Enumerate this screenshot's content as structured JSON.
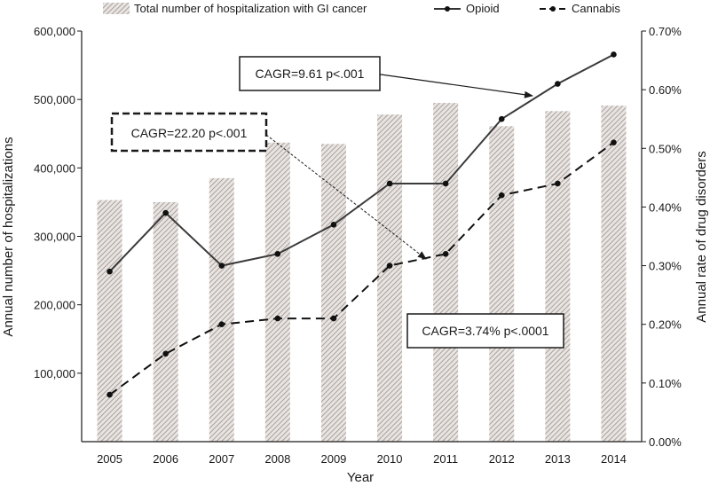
{
  "chart_data": {
    "type": "bar",
    "xlabel": "Year",
    "ylabel": "Annual number of hospitalizations",
    "y2label": "Annual rate of drug disorders",
    "categories": [
      "2005",
      "2006",
      "2007",
      "2008",
      "2009",
      "2010",
      "2011",
      "2012",
      "2013",
      "2014"
    ],
    "ylim": [
      0,
      600000
    ],
    "y2lim": [
      0,
      0.7
    ],
    "yticks": [
      "100,000",
      "200,000",
      "300,000",
      "400,000",
      "500,000",
      "600,000"
    ],
    "y2ticks": [
      "0.00%",
      "0.10%",
      "0.20%",
      "0.30%",
      "0.40%",
      "0.50%",
      "0.60%",
      "0.70%"
    ],
    "legend_position": "top",
    "series": [
      {
        "name": "Total number of hospitalization with GI cancer",
        "type": "bar",
        "axis": "left",
        "values": [
          353000,
          350000,
          385000,
          437000,
          435000,
          478000,
          495000,
          461000,
          483000,
          491000
        ]
      },
      {
        "name": "Opioid",
        "type": "line",
        "axis": "right",
        "style": "solid",
        "values": [
          0.29,
          0.39,
          0.3,
          0.32,
          0.37,
          0.44,
          0.44,
          0.55,
          0.61,
          0.66
        ]
      },
      {
        "name": "Cannabis",
        "type": "line",
        "axis": "right",
        "style": "dashed",
        "values": [
          0.08,
          0.15,
          0.2,
          0.21,
          0.21,
          0.3,
          0.32,
          0.42,
          0.44,
          0.51
        ]
      }
    ],
    "annotations": [
      {
        "text": "CAGR=9.61 p<.001",
        "series": "Opioid",
        "pointer_index": 8
      },
      {
        "text": "CAGR=22.20 p<.001",
        "series": "Cannabis",
        "pointer_index": 6
      },
      {
        "text": "CAGR=3.74% p<.0001",
        "series": "Total number of hospitalization with GI cancer"
      }
    ]
  }
}
